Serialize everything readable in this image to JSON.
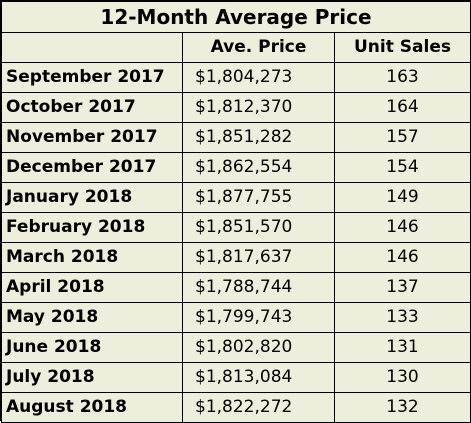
{
  "table": {
    "title": "12-Month Average Price",
    "columns": [
      "",
      "Ave. Price",
      "Unit Sales"
    ],
    "rows": [
      {
        "month": "September 2017",
        "price": "$1,804,273",
        "units": "163"
      },
      {
        "month": "October 2017",
        "price": "$1,812,370",
        "units": "164"
      },
      {
        "month": "November 2017",
        "price": "$1,851,282",
        "units": "157"
      },
      {
        "month": "December 2017",
        "price": "$1,862,554",
        "units": "154"
      },
      {
        "month": "January 2018",
        "price": "$1,877,755",
        "units": "149"
      },
      {
        "month": "February 2018",
        "price": "$1,851,570",
        "units": "146"
      },
      {
        "month": "March 2018",
        "price": "$1,817,637",
        "units": "146"
      },
      {
        "month": "April 2018",
        "price": "$1,788,744",
        "units": "137"
      },
      {
        "month": "May 2018",
        "price": "$1,799,743",
        "units": "133"
      },
      {
        "month": "June 2018",
        "price": "$1,802,820",
        "units": "131"
      },
      {
        "month": "July 2018",
        "price": "$1,813,084",
        "units": "130"
      },
      {
        "month": "August 2018",
        "price": "$1,822,272",
        "units": "132"
      }
    ]
  },
  "colors": {
    "background": "#efeedd",
    "border": "#000000",
    "text": "#000000"
  }
}
